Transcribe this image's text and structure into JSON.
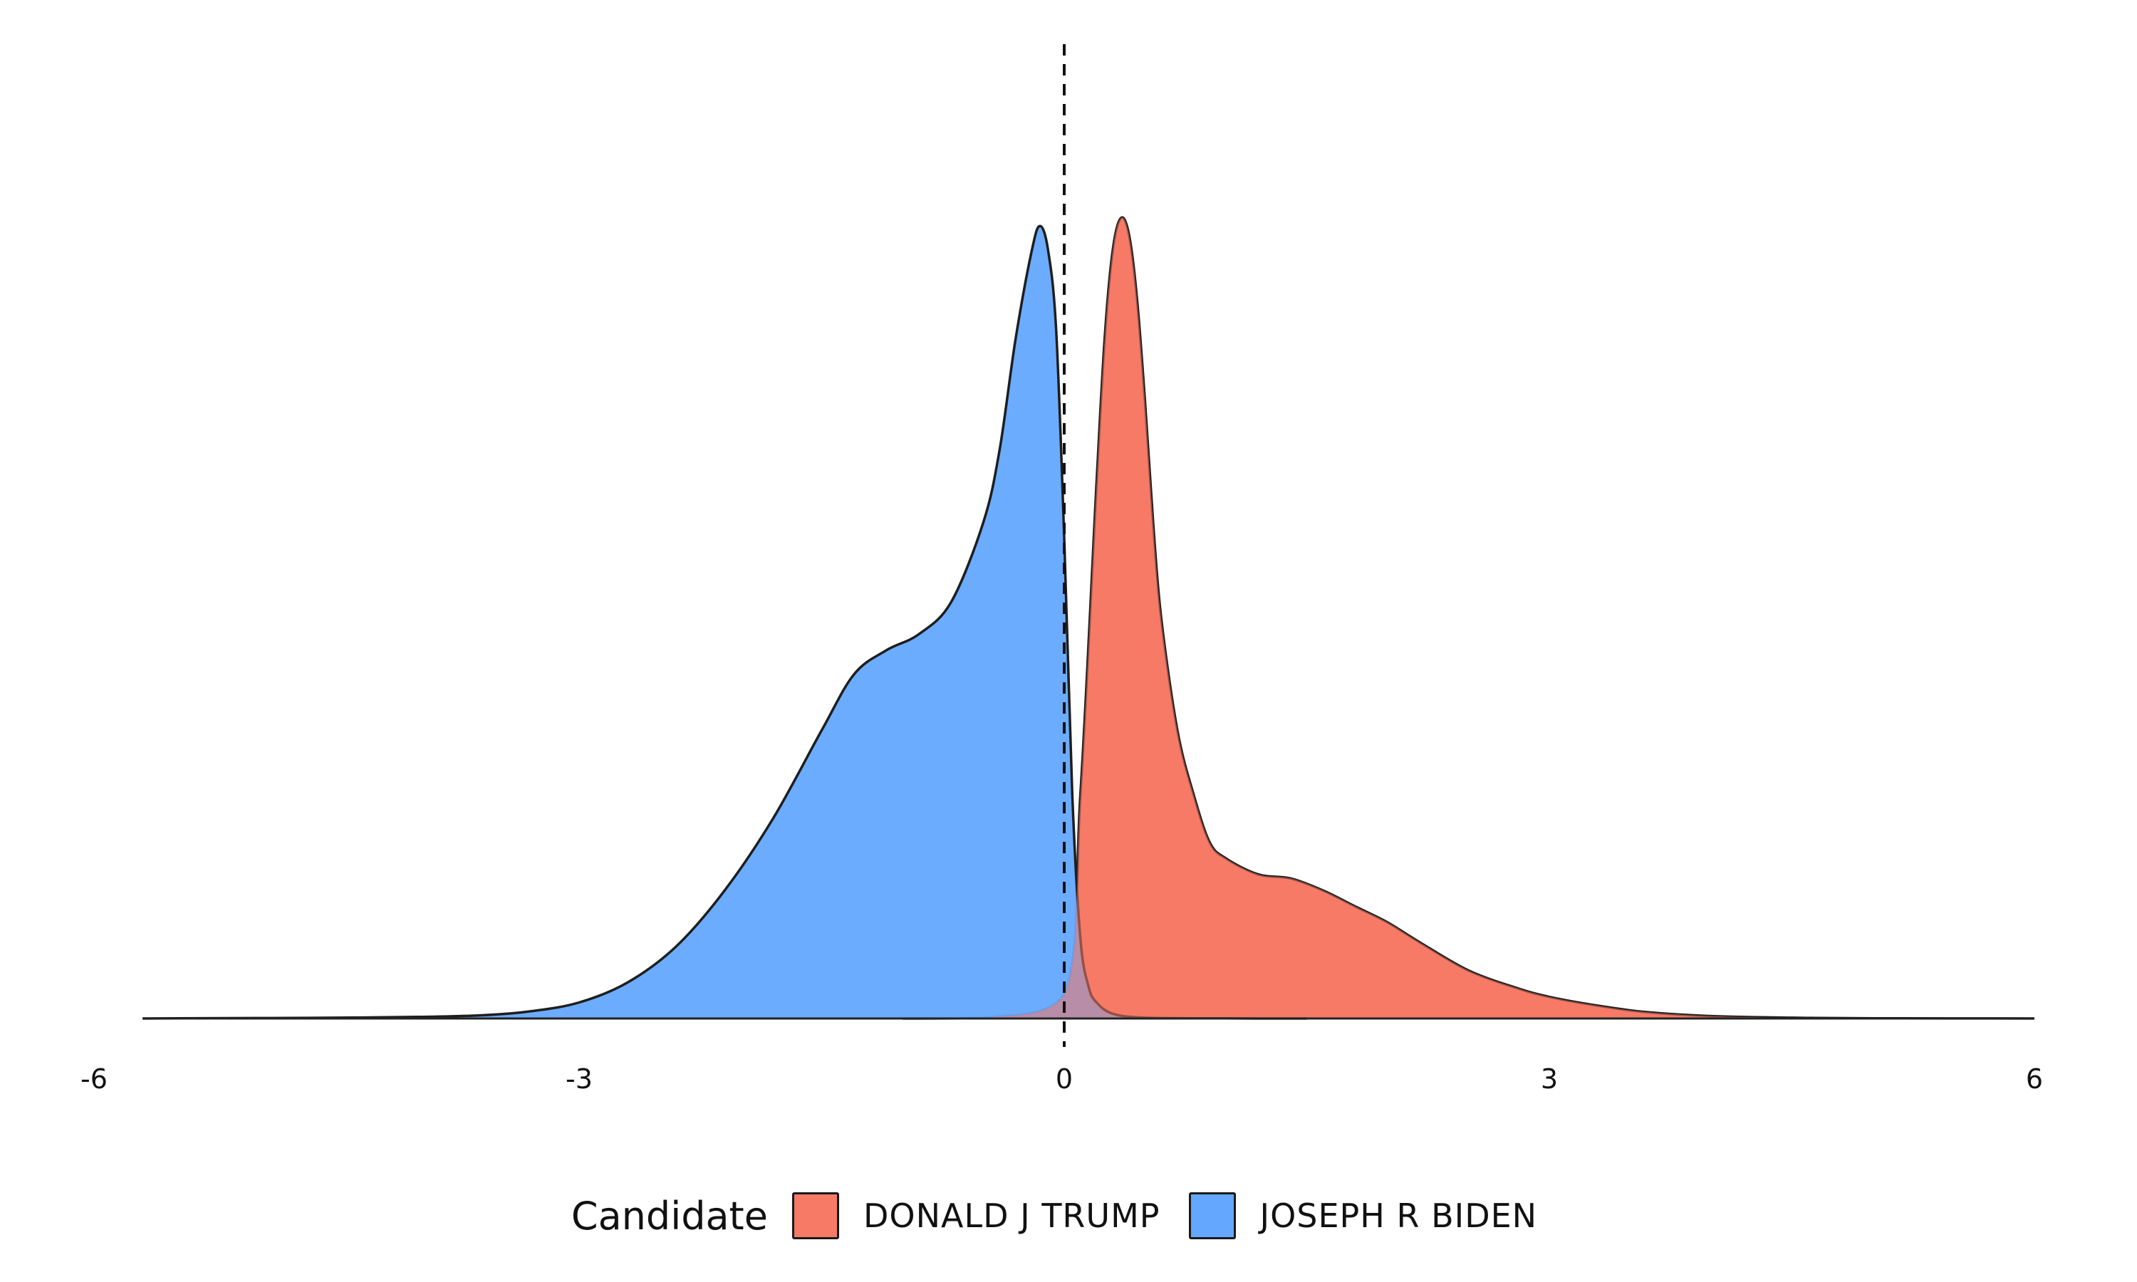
{
  "chart_data": {
    "type": "area",
    "xlim": [
      -6,
      6
    ],
    "ylim": [
      0,
      1.05
    ],
    "x_ticks": [
      -6,
      -3,
      0,
      3,
      6
    ],
    "x_tick_labels": [
      "-6",
      "-3",
      "0",
      "3",
      "6"
    ],
    "reference_line": {
      "x": 0,
      "style": "dashed"
    },
    "grid": false,
    "legend": {
      "title": "Candidate",
      "position": "bottom"
    },
    "series": [
      {
        "name": "DONALD J TRUMP",
        "color": "#F67A66",
        "x": [
          -1.0,
          -0.5,
          0.0,
          0.1,
          0.2,
          0.25,
          0.3,
          0.35,
          0.4,
          0.45,
          0.5,
          0.55,
          0.6,
          0.7,
          0.8,
          0.9,
          1.0,
          1.2,
          1.4,
          1.6,
          1.8,
          2.0,
          2.2,
          2.5,
          2.8,
          3.0,
          3.3,
          3.6,
          4.0,
          4.5,
          5.0,
          6.0
        ],
        "y": [
          0,
          0.0005,
          0.03,
          0.28,
          0.67,
          0.85,
          0.96,
          1.0,
          0.98,
          0.9,
          0.77,
          0.62,
          0.5,
          0.36,
          0.28,
          0.22,
          0.2,
          0.18,
          0.175,
          0.16,
          0.14,
          0.12,
          0.095,
          0.06,
          0.038,
          0.027,
          0.016,
          0.008,
          0.003,
          0.001,
          0.0003,
          0
        ]
      },
      {
        "name": "JOSEPH R BIDEN",
        "color": "#63A8FE",
        "x": [
          -5.7,
          -5.0,
          -4.5,
          -4.0,
          -3.6,
          -3.3,
          -3.0,
          -2.7,
          -2.4,
          -2.1,
          -1.8,
          -1.5,
          -1.3,
          -1.1,
          -0.9,
          -0.7,
          -0.5,
          -0.4,
          -0.3,
          -0.2,
          -0.15,
          -0.1,
          -0.05,
          0.0,
          0.05,
          0.1,
          0.15,
          0.2,
          0.3,
          0.5,
          1.0,
          1.5
        ],
        "y": [
          0,
          0.0005,
          0.001,
          0.002,
          0.004,
          0.009,
          0.02,
          0.045,
          0.09,
          0.16,
          0.25,
          0.36,
          0.43,
          0.46,
          0.48,
          0.52,
          0.62,
          0.71,
          0.85,
          0.96,
          0.99,
          0.96,
          0.86,
          0.6,
          0.28,
          0.1,
          0.04,
          0.02,
          0.006,
          0.001,
          0.0002,
          0
        ]
      }
    ]
  }
}
